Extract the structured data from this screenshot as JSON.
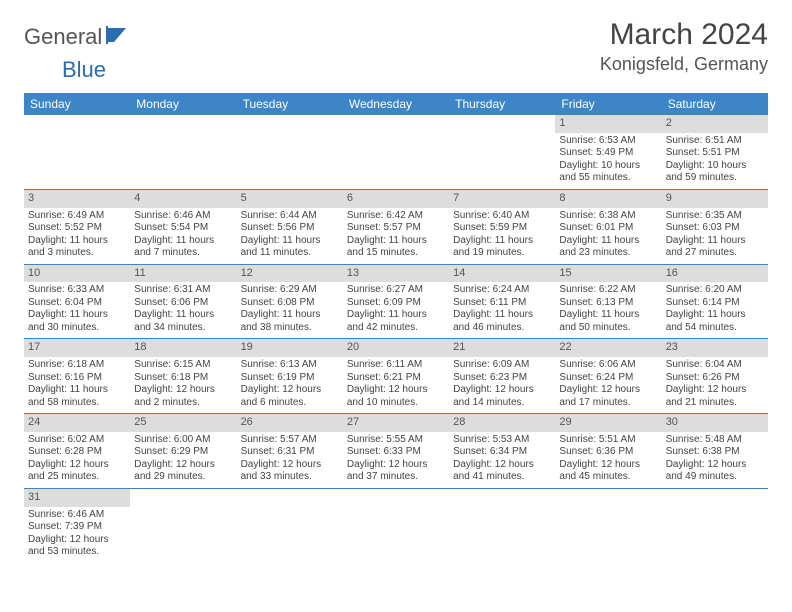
{
  "logo": {
    "part1": "General",
    "part2": "Blue"
  },
  "title": "March 2024",
  "location": "Konigsfeld, Germany",
  "colors": {
    "header_bg": "#3d85c6",
    "header_text": "#ffffff",
    "daynum_bg": "#dddddd",
    "row_divider": "#3d85c6",
    "text": "#444444",
    "logo_accent": "#2a6db0"
  },
  "weekdays": [
    "Sunday",
    "Monday",
    "Tuesday",
    "Wednesday",
    "Thursday",
    "Friday",
    "Saturday"
  ],
  "weeks": [
    [
      {
        "day": null
      },
      {
        "day": null
      },
      {
        "day": null
      },
      {
        "day": null
      },
      {
        "day": null
      },
      {
        "day": "1",
        "sunrise": "Sunrise: 6:53 AM",
        "sunset": "Sunset: 5:49 PM",
        "daylight": "Daylight: 10 hours and 55 minutes."
      },
      {
        "day": "2",
        "sunrise": "Sunrise: 6:51 AM",
        "sunset": "Sunset: 5:51 PM",
        "daylight": "Daylight: 10 hours and 59 minutes."
      }
    ],
    [
      {
        "day": "3",
        "sunrise": "Sunrise: 6:49 AM",
        "sunset": "Sunset: 5:52 PM",
        "daylight": "Daylight: 11 hours and 3 minutes."
      },
      {
        "day": "4",
        "sunrise": "Sunrise: 6:46 AM",
        "sunset": "Sunset: 5:54 PM",
        "daylight": "Daylight: 11 hours and 7 minutes."
      },
      {
        "day": "5",
        "sunrise": "Sunrise: 6:44 AM",
        "sunset": "Sunset: 5:56 PM",
        "daylight": "Daylight: 11 hours and 11 minutes."
      },
      {
        "day": "6",
        "sunrise": "Sunrise: 6:42 AM",
        "sunset": "Sunset: 5:57 PM",
        "daylight": "Daylight: 11 hours and 15 minutes."
      },
      {
        "day": "7",
        "sunrise": "Sunrise: 6:40 AM",
        "sunset": "Sunset: 5:59 PM",
        "daylight": "Daylight: 11 hours and 19 minutes."
      },
      {
        "day": "8",
        "sunrise": "Sunrise: 6:38 AM",
        "sunset": "Sunset: 6:01 PM",
        "daylight": "Daylight: 11 hours and 23 minutes."
      },
      {
        "day": "9",
        "sunrise": "Sunrise: 6:35 AM",
        "sunset": "Sunset: 6:03 PM",
        "daylight": "Daylight: 11 hours and 27 minutes."
      }
    ],
    [
      {
        "day": "10",
        "sunrise": "Sunrise: 6:33 AM",
        "sunset": "Sunset: 6:04 PM",
        "daylight": "Daylight: 11 hours and 30 minutes."
      },
      {
        "day": "11",
        "sunrise": "Sunrise: 6:31 AM",
        "sunset": "Sunset: 6:06 PM",
        "daylight": "Daylight: 11 hours and 34 minutes."
      },
      {
        "day": "12",
        "sunrise": "Sunrise: 6:29 AM",
        "sunset": "Sunset: 6:08 PM",
        "daylight": "Daylight: 11 hours and 38 minutes."
      },
      {
        "day": "13",
        "sunrise": "Sunrise: 6:27 AM",
        "sunset": "Sunset: 6:09 PM",
        "daylight": "Daylight: 11 hours and 42 minutes."
      },
      {
        "day": "14",
        "sunrise": "Sunrise: 6:24 AM",
        "sunset": "Sunset: 6:11 PM",
        "daylight": "Daylight: 11 hours and 46 minutes."
      },
      {
        "day": "15",
        "sunrise": "Sunrise: 6:22 AM",
        "sunset": "Sunset: 6:13 PM",
        "daylight": "Daylight: 11 hours and 50 minutes."
      },
      {
        "day": "16",
        "sunrise": "Sunrise: 6:20 AM",
        "sunset": "Sunset: 6:14 PM",
        "daylight": "Daylight: 11 hours and 54 minutes."
      }
    ],
    [
      {
        "day": "17",
        "sunrise": "Sunrise: 6:18 AM",
        "sunset": "Sunset: 6:16 PM",
        "daylight": "Daylight: 11 hours and 58 minutes."
      },
      {
        "day": "18",
        "sunrise": "Sunrise: 6:15 AM",
        "sunset": "Sunset: 6:18 PM",
        "daylight": "Daylight: 12 hours and 2 minutes."
      },
      {
        "day": "19",
        "sunrise": "Sunrise: 6:13 AM",
        "sunset": "Sunset: 6:19 PM",
        "daylight": "Daylight: 12 hours and 6 minutes."
      },
      {
        "day": "20",
        "sunrise": "Sunrise: 6:11 AM",
        "sunset": "Sunset: 6:21 PM",
        "daylight": "Daylight: 12 hours and 10 minutes."
      },
      {
        "day": "21",
        "sunrise": "Sunrise: 6:09 AM",
        "sunset": "Sunset: 6:23 PM",
        "daylight": "Daylight: 12 hours and 14 minutes."
      },
      {
        "day": "22",
        "sunrise": "Sunrise: 6:06 AM",
        "sunset": "Sunset: 6:24 PM",
        "daylight": "Daylight: 12 hours and 17 minutes."
      },
      {
        "day": "23",
        "sunrise": "Sunrise: 6:04 AM",
        "sunset": "Sunset: 6:26 PM",
        "daylight": "Daylight: 12 hours and 21 minutes."
      }
    ],
    [
      {
        "day": "24",
        "sunrise": "Sunrise: 6:02 AM",
        "sunset": "Sunset: 6:28 PM",
        "daylight": "Daylight: 12 hours and 25 minutes."
      },
      {
        "day": "25",
        "sunrise": "Sunrise: 6:00 AM",
        "sunset": "Sunset: 6:29 PM",
        "daylight": "Daylight: 12 hours and 29 minutes."
      },
      {
        "day": "26",
        "sunrise": "Sunrise: 5:57 AM",
        "sunset": "Sunset: 6:31 PM",
        "daylight": "Daylight: 12 hours and 33 minutes."
      },
      {
        "day": "27",
        "sunrise": "Sunrise: 5:55 AM",
        "sunset": "Sunset: 6:33 PM",
        "daylight": "Daylight: 12 hours and 37 minutes."
      },
      {
        "day": "28",
        "sunrise": "Sunrise: 5:53 AM",
        "sunset": "Sunset: 6:34 PM",
        "daylight": "Daylight: 12 hours and 41 minutes."
      },
      {
        "day": "29",
        "sunrise": "Sunrise: 5:51 AM",
        "sunset": "Sunset: 6:36 PM",
        "daylight": "Daylight: 12 hours and 45 minutes."
      },
      {
        "day": "30",
        "sunrise": "Sunrise: 5:48 AM",
        "sunset": "Sunset: 6:38 PM",
        "daylight": "Daylight: 12 hours and 49 minutes."
      }
    ],
    [
      {
        "day": "31",
        "sunrise": "Sunrise: 6:46 AM",
        "sunset": "Sunset: 7:39 PM",
        "daylight": "Daylight: 12 hours and 53 minutes."
      },
      {
        "day": null
      },
      {
        "day": null
      },
      {
        "day": null
      },
      {
        "day": null
      },
      {
        "day": null
      },
      {
        "day": null
      }
    ]
  ]
}
